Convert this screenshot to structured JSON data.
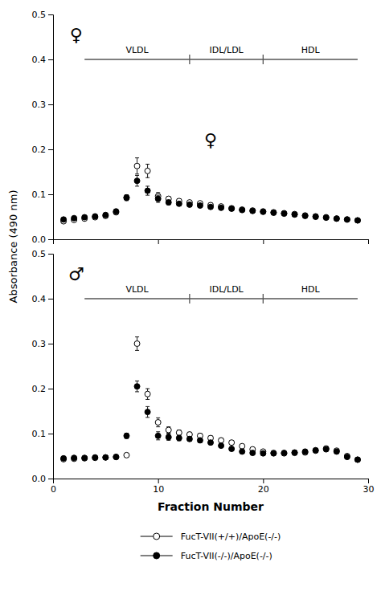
{
  "chart_data": [
    {
      "type": "scatter",
      "ylabel": "Absorbance (490 nm)",
      "x": [
        1,
        2,
        3,
        4,
        5,
        6,
        7,
        8,
        9,
        10,
        11,
        12,
        13,
        14,
        15,
        16,
        17,
        18,
        19,
        20,
        21,
        22,
        23,
        24,
        25,
        26,
        27,
        28,
        29
      ],
      "series": [
        {
          "color": "black",
          "marker": "circle-open",
          "values": [
            0.04,
            0.043,
            0.046,
            0.049,
            0.052,
            0.06,
            0.092,
            0.163,
            0.152,
            0.096,
            0.09,
            0.085,
            0.082,
            0.08,
            0.076,
            0.073,
            0.069,
            0.066,
            0.064,
            0.062,
            0.06,
            0.058,
            0.056,
            0.053,
            0.051,
            0.049,
            0.046,
            0.044,
            0.042
          ],
          "errors": [
            0.003,
            0.003,
            0.003,
            0.003,
            0.003,
            0.004,
            0.006,
            0.018,
            0.015,
            0.008,
            0.005,
            0.005,
            0.004,
            0.004,
            0.004,
            0.003,
            0.003,
            0.003,
            0.003,
            0.003,
            0.003,
            0.003,
            0.003,
            0.003,
            0.003,
            0.003,
            0.003,
            0.003,
            0.003
          ]
        },
        {
          "color": "black",
          "marker": "circle",
          "values": [
            0.044,
            0.047,
            0.049,
            0.051,
            0.054,
            0.062,
            0.093,
            0.13,
            0.108,
            0.09,
            0.082,
            0.079,
            0.077,
            0.075,
            0.072,
            0.07,
            0.068,
            0.065,
            0.063,
            0.061,
            0.059,
            0.057,
            0.055,
            0.052,
            0.05,
            0.048,
            0.046,
            0.044,
            0.042
          ],
          "errors": [
            0.003,
            0.003,
            0.003,
            0.003,
            0.003,
            0.004,
            0.006,
            0.012,
            0.01,
            0.008,
            0.005,
            0.004,
            0.004,
            0.004,
            0.003,
            0.003,
            0.003,
            0.003,
            0.003,
            0.003,
            0.003,
            0.003,
            0.003,
            0.003,
            0.003,
            0.003,
            0.003,
            0.003,
            0.003
          ]
        }
      ],
      "xlim": [
        0,
        30
      ],
      "xticks": [
        0,
        10,
        20,
        30
      ],
      "ylim": [
        0,
        0.5
      ],
      "yticks": [
        {
          "value": 0,
          "label": "0.0"
        },
        0.1,
        0.2,
        0.3,
        0.4,
        0.5
      ],
      "tick_labels": "y",
      "fraction_bar": {
        "y": 0.4,
        "bounds": [
          3,
          13,
          20,
          29
        ],
        "labels": [
          {
            "text": "VLDL",
            "x": 8.0
          },
          {
            "text": "IDL/LDL",
            "x": 16.5
          },
          {
            "text": "HDL",
            "x": 24.5
          }
        ]
      },
      "annotations": [
        {
          "text": "♀",
          "x": 15,
          "y": 0.22
        },
        {
          "text": "♀",
          "x": 2.2,
          "y": 0.455
        }
      ]
    },
    {
      "type": "scatter",
      "xlabel": "Fraction Number",
      "x": [
        1,
        2,
        3,
        4,
        5,
        6,
        7,
        8,
        9,
        10,
        11,
        12,
        13,
        14,
        15,
        16,
        17,
        18,
        19,
        20,
        21,
        22,
        23,
        24,
        25,
        26,
        27,
        28,
        29
      ],
      "series": [
        {
          "name": "FucT-VII(+/+)/ApoE(-/-)",
          "color": "black",
          "marker": "circle-open",
          "values": [
            0.043,
            0.044,
            0.045,
            0.046,
            0.047,
            0.048,
            0.052,
            0.3,
            0.188,
            0.125,
            0.108,
            0.102,
            0.098,
            0.095,
            0.09,
            0.085,
            0.08,
            0.072,
            0.065,
            0.06,
            0.057,
            0.056,
            0.057,
            0.058,
            0.062,
            0.067,
            0.062,
            0.05,
            0.042
          ],
          "errors": [
            0.003,
            0.003,
            0.003,
            0.003,
            0.003,
            0.003,
            0.003,
            0.015,
            0.012,
            0.01,
            0.007,
            0.006,
            0.005,
            0.005,
            0.005,
            0.005,
            0.004,
            0.004,
            0.003,
            0.003,
            0.003,
            0.003,
            0.003,
            0.003,
            0.003,
            0.003,
            0.003,
            0.003,
            0.003
          ]
        },
        {
          "name": "FucT-VII(-/-)/ApoE(-/-)",
          "color": "black",
          "marker": "circle",
          "values": [
            0.045,
            0.046,
            0.046,
            0.047,
            0.047,
            0.048,
            0.095,
            0.205,
            0.148,
            0.095,
            0.092,
            0.09,
            0.088,
            0.085,
            0.08,
            0.073,
            0.066,
            0.06,
            0.057,
            0.056,
            0.056,
            0.057,
            0.058,
            0.06,
            0.063,
            0.065,
            0.06,
            0.048,
            0.042
          ],
          "errors": [
            0.003,
            0.003,
            0.003,
            0.003,
            0.003,
            0.003,
            0.006,
            0.012,
            0.012,
            0.009,
            0.007,
            0.006,
            0.005,
            0.005,
            0.004,
            0.004,
            0.003,
            0.003,
            0.003,
            0.003,
            0.003,
            0.003,
            0.003,
            0.003,
            0.003,
            0.003,
            0.003,
            0.003,
            0.003
          ]
        }
      ],
      "xlim": [
        0,
        30
      ],
      "xticks": [
        0,
        10,
        20,
        30
      ],
      "ylim": [
        0,
        0.5
      ],
      "yticks": [
        {
          "value": 0,
          "label": "0.0"
        },
        0.1,
        0.2,
        0.3,
        0.4,
        0.5
      ],
      "legend": "bottom",
      "fraction_bar": {
        "y": 0.4,
        "bounds": [
          3,
          13,
          20,
          29
        ],
        "labels": [
          {
            "text": "VLDL",
            "x": 8.0
          },
          {
            "text": "IDL/LDL",
            "x": 16.5
          },
          {
            "text": "HDL",
            "x": 24.5
          }
        ]
      },
      "annotations": [
        {
          "text": "♂",
          "x": 2.2,
          "y": 0.455
        }
      ]
    }
  ]
}
